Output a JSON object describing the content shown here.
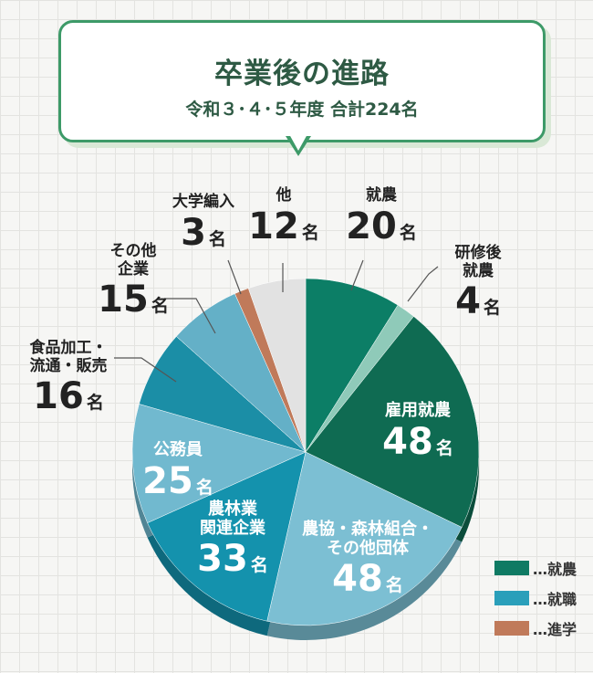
{
  "header": {
    "title": "卒業後の進路",
    "subtitle": "令和３･４･５年度 合計224名"
  },
  "unit": "名",
  "colors": {
    "farming": "#0f7a63",
    "employment": "#2a9fba",
    "study": "#c07a5a",
    "other": "#e2e2e2"
  },
  "legend": [
    {
      "label": "…就農",
      "color": "#0f7a63"
    },
    {
      "label": "…就職",
      "color": "#2a9fba"
    },
    {
      "label": "…進学",
      "color": "#c07a5a"
    }
  ],
  "chart_data": {
    "type": "pie",
    "title": "卒業後の進路",
    "subtitle": "令和３･４･５年度 合計224名",
    "total": 224,
    "slices": [
      {
        "label": "就農",
        "value": 20,
        "group": "就農",
        "color": "#0c7e66"
      },
      {
        "label": "研修後就農",
        "value": 4,
        "group": "就農",
        "color": "#8fcab9"
      },
      {
        "label": "雇用就農",
        "value": 48,
        "group": "就農",
        "color": "#0f6b52"
      },
      {
        "label": "農協・森林組合・その他団体",
        "value": 48,
        "group": "就職",
        "color": "#7cbfd3"
      },
      {
        "label": "農林業関連企業",
        "value": 33,
        "group": "就職",
        "color": "#1492ad"
      },
      {
        "label": "公務員",
        "value": 25,
        "group": "就職",
        "color": "#71b9cf"
      },
      {
        "label": "食品加工・流通・販売",
        "value": 16,
        "group": "就職",
        "color": "#1b8ea6"
      },
      {
        "label": "その他企業",
        "value": 15,
        "group": "就職",
        "color": "#64b0c7"
      },
      {
        "label": "大学編入",
        "value": 3,
        "group": "進学",
        "color": "#c07a5a"
      },
      {
        "label": "他",
        "value": 12,
        "group": "他",
        "color": "#e2e2e2"
      }
    ]
  },
  "labels": {
    "s0": {
      "name": "就農",
      "num": "20"
    },
    "s1": {
      "name_l1": "研修後",
      "name_l2": "就農",
      "num": "4"
    },
    "s2": {
      "name": "雇用就農",
      "num": "48"
    },
    "s3": {
      "name_l1": "農協・森林組合・",
      "name_l2": "その他団体",
      "num": "48"
    },
    "s4": {
      "name_l1": "農林業",
      "name_l2": "関連企業",
      "num": "33"
    },
    "s5": {
      "name": "公務員",
      "num": "25"
    },
    "s6": {
      "name_l1": "食品加工・",
      "name_l2": "流通・販売",
      "num": "16"
    },
    "s7": {
      "name_l1": "その他",
      "name_l2": "企業",
      "num": "15"
    },
    "s8": {
      "name": "大学編入",
      "num": "3"
    },
    "s9": {
      "name": "他",
      "num": "12"
    }
  }
}
